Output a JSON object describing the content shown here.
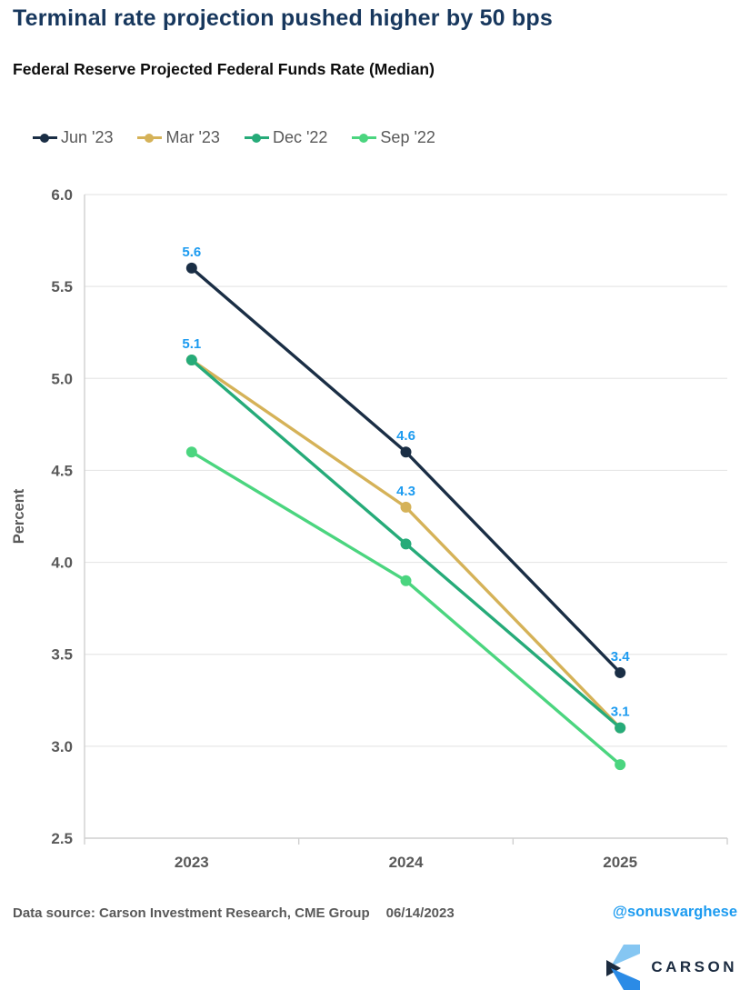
{
  "title": "Terminal rate projection pushed higher by 50 bps",
  "subtitle": "Federal Reserve Projected Federal Funds Rate (Median)",
  "footer": {
    "source": "Data source: Carson Investment Research, CME Group",
    "date": "06/14/2023",
    "handle": "@sonusvarghese",
    "logo_text": "CARSON"
  },
  "colors": {
    "title": "#17375d",
    "axis_text": "#595959",
    "data_label": "#1c9bf0",
    "gridline": "#e7e7e7",
    "axis_line": "#cfcfcf",
    "logo_light_blue": "#85c6f2",
    "logo_blue": "#2b8be6",
    "logo_navy": "#1c2b3f"
  },
  "chart_data": {
    "type": "line",
    "title": "Federal Reserve Projected Federal Funds Rate (Median)",
    "xlabel": "",
    "ylabel": "Percent",
    "categories": [
      "2023",
      "2024",
      "2025"
    ],
    "series": [
      {
        "name": "Jun '23",
        "color": "#1a2e45",
        "values": [
          5.6,
          4.6,
          3.4
        ],
        "point_labels": [
          "5.6",
          "4.6",
          "3.4"
        ]
      },
      {
        "name": "Mar '23",
        "color": "#d5b258",
        "values": [
          5.1,
          4.3,
          3.1
        ],
        "point_labels": [
          null,
          "4.3",
          null
        ]
      },
      {
        "name": "Dec '22",
        "color": "#26ab79",
        "values": [
          5.1,
          4.1,
          3.1
        ],
        "point_labels": [
          "5.1",
          null,
          "3.1"
        ]
      },
      {
        "name": "Sep '22",
        "color": "#4bd57f",
        "values": [
          4.6,
          3.9,
          2.9
        ],
        "point_labels": [
          null,
          null,
          null
        ]
      }
    ],
    "ylim": [
      2.5,
      6.0
    ],
    "ytick_step": 0.5,
    "grid": true,
    "legend_position": "top",
    "draw_order": [
      1,
      2,
      3,
      0
    ]
  }
}
